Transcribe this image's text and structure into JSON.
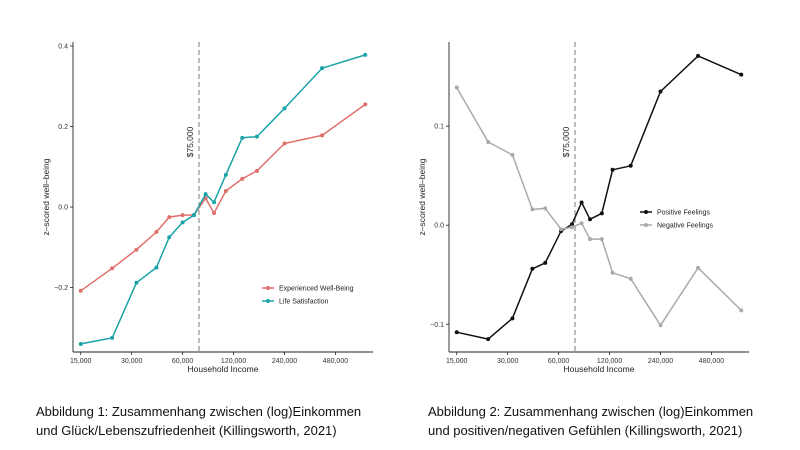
{
  "chart_data": [
    {
      "type": "line",
      "title": "",
      "xlabel": "Household Income",
      "ylabel": "z–scored well–being",
      "x_scale": "log2",
      "x_ticks": [
        15000,
        30000,
        60000,
        120000,
        240000,
        480000
      ],
      "x_tick_labels": [
        "15,000",
        "30,000",
        "60,000",
        "120,000",
        "240,000",
        "480,000"
      ],
      "y_ticks": [
        -0.2,
        0.0,
        0.2,
        0.4
      ],
      "y_tick_labels": [
        "−0.2",
        "0.0",
        "0.2",
        "0.4"
      ],
      "xlim": [
        13500,
        800000
      ],
      "ylim": [
        -0.36,
        0.41
      ],
      "grid": false,
      "legend_position": "bottom-right",
      "reference_line": {
        "x": 75000,
        "label": "$75,000",
        "style": "dashed",
        "color": "#888888"
      },
      "series": [
        {
          "name": "Experienced Well-Being",
          "color": "#e0706b",
          "points": [
            [
              15000,
              -0.208
            ],
            [
              23000,
              -0.152
            ],
            [
              32000,
              -0.106
            ],
            [
              42000,
              -0.062
            ],
            [
              50000,
              -0.025
            ],
            [
              60000,
              -0.02
            ],
            [
              70000,
              -0.02
            ],
            [
              82000,
              0.022
            ],
            [
              92000,
              -0.015
            ],
            [
              108000,
              0.04
            ],
            [
              135000,
              0.07
            ],
            [
              165000,
              0.09
            ],
            [
              240000,
              0.158
            ],
            [
              400000,
              0.178
            ],
            [
              720000,
              0.255
            ]
          ]
        },
        {
          "name": "Life Satisfaction",
          "color": "#1aa3a8",
          "points": [
            [
              15000,
              -0.34
            ],
            [
              23000,
              -0.325
            ],
            [
              32000,
              -0.188
            ],
            [
              42000,
              -0.15
            ],
            [
              50000,
              -0.075
            ],
            [
              60000,
              -0.038
            ],
            [
              70000,
              -0.02
            ],
            [
              82000,
              0.032
            ],
            [
              92000,
              0.012
            ],
            [
              108000,
              0.08
            ],
            [
              135000,
              0.172
            ],
            [
              165000,
              0.175
            ],
            [
              240000,
              0.245
            ],
            [
              400000,
              0.345
            ],
            [
              720000,
              0.378
            ]
          ]
        }
      ]
    },
    {
      "type": "line",
      "title": "",
      "xlabel": "Household Income",
      "ylabel": "z–scored well–being",
      "x_scale": "log2",
      "x_ticks": [
        15000,
        30000,
        60000,
        120000,
        240000,
        480000
      ],
      "x_tick_labels": [
        "15,000",
        "30,000",
        "60,000",
        "120,000",
        "240,000",
        "480,000"
      ],
      "y_ticks": [
        -0.1,
        0.0,
        0.1
      ],
      "y_tick_labels": [
        "−0.1",
        "0.0",
        "0.1"
      ],
      "xlim": [
        13500,
        800000
      ],
      "ylim": [
        -0.128,
        0.185
      ],
      "grid": false,
      "legend_position": "middle-right",
      "reference_line": {
        "x": 75000,
        "label": "$75,000",
        "style": "dashed",
        "color": "#888888"
      },
      "series": [
        {
          "name": "Positive Feelings",
          "color": "#111111",
          "points": [
            [
              15000,
              -0.108
            ],
            [
              23000,
              -0.115
            ],
            [
              32000,
              -0.094
            ],
            [
              42000,
              -0.044
            ],
            [
              50000,
              -0.038
            ],
            [
              62000,
              -0.006
            ],
            [
              72000,
              0.001
            ],
            [
              82000,
              0.023
            ],
            [
              92000,
              0.006
            ],
            [
              108000,
              0.012
            ],
            [
              125000,
              0.056
            ],
            [
              160000,
              0.06
            ],
            [
              240000,
              0.135
            ],
            [
              400000,
              0.171
            ],
            [
              720000,
              0.152
            ]
          ]
        },
        {
          "name": "Negative Feelings",
          "color": "#aaaaaa",
          "points": [
            [
              15000,
              0.139
            ],
            [
              23000,
              0.084
            ],
            [
              32000,
              0.071
            ],
            [
              42000,
              0.016
            ],
            [
              50000,
              0.017
            ],
            [
              62000,
              -0.004
            ],
            [
              72000,
              -0.002
            ],
            [
              82000,
              0.002
            ],
            [
              92000,
              -0.014
            ],
            [
              108000,
              -0.014
            ],
            [
              125000,
              -0.048
            ],
            [
              160000,
              -0.054
            ],
            [
              240000,
              -0.101
            ],
            [
              400000,
              -0.043
            ],
            [
              720000,
              -0.086
            ]
          ]
        }
      ]
    }
  ],
  "captions": [
    {
      "line1": "Abbildung 1: Zusammenhang zwischen (log)Einkommen",
      "line2": "und Glück/Lebenszufriedenheit (Killingsworth, 2021)"
    },
    {
      "line1": "Abbildung 2: Zusammenhang zwischen (log)Einkommen",
      "line2": "und positiven/negativen Gefühlen (Killingsworth, 2021)"
    }
  ]
}
